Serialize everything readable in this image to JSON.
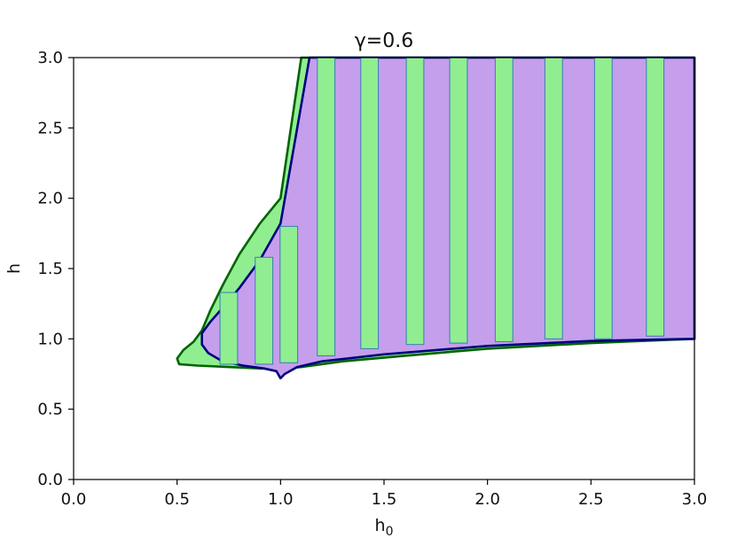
{
  "chart_data": {
    "type": "area",
    "title": "γ=0.6",
    "xlabel": "h",
    "xlabel_sub": "0",
    "ylabel": "h",
    "xlim": [
      0.0,
      3.0
    ],
    "ylim": [
      0.0,
      3.0
    ],
    "xticks": [
      "0.0",
      "0.5",
      "1.0",
      "1.5",
      "2.0",
      "2.5",
      "3.0"
    ],
    "yticks": [
      "0.0",
      "0.5",
      "1.0",
      "1.5",
      "2.0",
      "2.5",
      "3.0"
    ],
    "grid": false,
    "colors": {
      "green_fill": "#90ee90",
      "green_edge": "#006400",
      "purple_fill": "#c59fec",
      "purple_edge": "#000080",
      "bar_edge": "#3a7ab8",
      "axis": "#000000"
    },
    "series": [
      {
        "kind": "region",
        "color": "green",
        "boundary": [
          [
            1.1,
            3.0
          ],
          [
            1.0,
            2.0
          ],
          [
            0.9,
            1.82
          ],
          [
            0.8,
            1.6
          ],
          [
            0.72,
            1.38
          ],
          [
            0.66,
            1.2
          ],
          [
            0.62,
            1.06
          ],
          [
            0.58,
            0.98
          ],
          [
            0.53,
            0.92
          ],
          [
            0.5,
            0.86
          ],
          [
            0.51,
            0.82
          ],
          [
            0.6,
            0.81
          ],
          [
            0.75,
            0.8
          ],
          [
            0.9,
            0.79
          ],
          [
            1.0,
            0.785
          ],
          [
            1.1,
            0.8
          ],
          [
            1.3,
            0.84
          ],
          [
            1.6,
            0.88
          ],
          [
            2.0,
            0.93
          ],
          [
            2.5,
            0.97
          ],
          [
            3.0,
            1.0
          ],
          [
            3.0,
            3.0
          ]
        ]
      },
      {
        "kind": "region",
        "color": "purple",
        "boundary": [
          [
            1.14,
            3.0
          ],
          [
            1.0,
            1.82
          ],
          [
            0.9,
            1.56
          ],
          [
            0.8,
            1.36
          ],
          [
            0.72,
            1.22
          ],
          [
            0.66,
            1.12
          ],
          [
            0.62,
            1.04
          ],
          [
            0.62,
            0.96
          ],
          [
            0.65,
            0.9
          ],
          [
            0.72,
            0.84
          ],
          [
            0.82,
            0.81
          ],
          [
            0.92,
            0.79
          ],
          [
            0.98,
            0.77
          ],
          [
            1.0,
            0.72
          ],
          [
            1.02,
            0.75
          ],
          [
            1.08,
            0.8
          ],
          [
            1.2,
            0.84
          ],
          [
            1.5,
            0.89
          ],
          [
            2.0,
            0.95
          ],
          [
            2.5,
            0.985
          ],
          [
            3.0,
            1.0
          ],
          [
            3.0,
            3.0
          ]
        ]
      },
      {
        "kind": "bars",
        "color": "green",
        "x": [
          0.75,
          0.92,
          1.04,
          1.22,
          1.43,
          1.65,
          1.86,
          2.08,
          2.32,
          2.56,
          2.81
        ],
        "bottom": [
          0.82,
          0.82,
          0.83,
          0.88,
          0.93,
          0.96,
          0.97,
          0.98,
          1.0,
          1.0,
          1.02
        ],
        "top": [
          1.33,
          1.58,
          1.8,
          3.0,
          3.0,
          3.0,
          3.0,
          3.0,
          3.0,
          3.0,
          3.0
        ],
        "width": 0.085
      }
    ]
  }
}
